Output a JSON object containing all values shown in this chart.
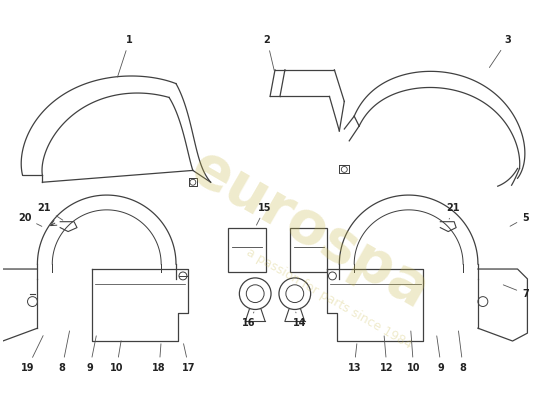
{
  "background_color": "#ffffff",
  "line_color": "#404040",
  "label_color": "#222222",
  "watermark_color1": "#c8b84a",
  "watermark_color2": "#c8b84a",
  "watermark_text1": "eurospa",
  "watermark_text2": "a passion for parts since 1984"
}
